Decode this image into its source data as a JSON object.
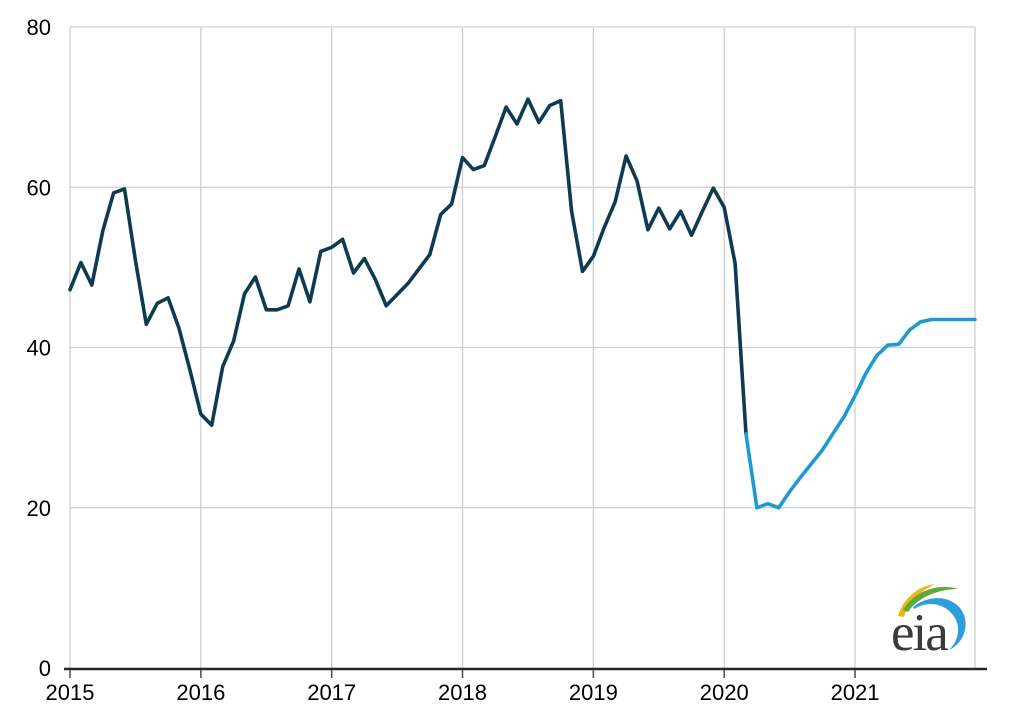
{
  "logo": {
    "text": "eia"
  },
  "chart_data": {
    "type": "line",
    "title": "",
    "xlabel": "",
    "ylabel": "",
    "x_tick_labels": [
      "2015",
      "2016",
      "2017",
      "2018",
      "2019",
      "2020",
      "2021"
    ],
    "y_tick_labels": [
      "0",
      "20",
      "40",
      "60",
      "80"
    ],
    "y_ticks": [
      0,
      20,
      40,
      60,
      80
    ],
    "ylim": [
      0,
      80
    ],
    "x_unit": "month",
    "grid": true,
    "legend_position": "none",
    "series": [
      {
        "name": "history",
        "color": "#0e3a52",
        "start_year": 2015,
        "start_month": 1,
        "start_index": 0,
        "values": [
          47.2,
          50.6,
          47.8,
          54.5,
          59.3,
          59.8,
          50.9,
          42.9,
          45.5,
          46.2,
          42.4,
          37.2,
          31.7,
          30.3,
          37.6,
          40.8,
          46.7,
          48.8,
          44.7,
          44.7,
          45.2,
          49.8,
          45.7,
          52.0,
          52.5,
          53.5,
          49.3,
          51.1,
          48.5,
          45.2,
          46.6,
          48.0,
          49.8,
          51.6,
          56.6,
          57.9,
          63.7,
          62.2,
          62.7,
          66.3,
          70.0,
          67.9,
          71.0,
          68.1,
          70.2,
          70.8,
          57.0,
          49.5,
          51.4,
          55.0,
          58.2,
          63.9,
          60.8,
          54.7,
          57.4,
          54.8,
          57.0,
          54.0,
          57.0,
          59.9,
          57.5,
          50.5,
          29.2
        ]
      },
      {
        "name": "forecast",
        "color": "#1e9ad3",
        "start_year": 2020,
        "start_month": 3,
        "start_index": 62,
        "values": [
          29.2,
          20.0,
          20.5,
          20.0,
          22.0,
          23.8,
          25.5,
          27.2,
          29.3,
          31.4,
          34.0,
          36.8,
          39.0,
          40.3,
          40.4,
          42.2,
          43.2,
          43.5,
          43.5,
          43.5,
          43.5,
          43.5
        ]
      }
    ]
  }
}
